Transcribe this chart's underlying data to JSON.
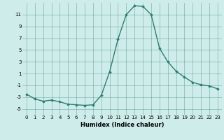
{
  "x": [
    0,
    1,
    2,
    3,
    4,
    5,
    6,
    7,
    8,
    9,
    10,
    11,
    12,
    13,
    14,
    15,
    16,
    17,
    18,
    19,
    20,
    21,
    22,
    23
  ],
  "y": [
    -2.5,
    -3.3,
    -3.7,
    -3.5,
    -3.8,
    -4.2,
    -4.3,
    -4.4,
    -4.3,
    -2.7,
    1.3,
    6.8,
    11.0,
    12.5,
    12.4,
    11.0,
    5.3,
    3.0,
    1.4,
    0.4,
    -0.5,
    -0.9,
    -1.1,
    -1.6
  ],
  "line_color": "#2e7d6e",
  "marker": "D",
  "markersize": 1.8,
  "linewidth": 1.0,
  "xlabel": "Humidex (Indice chaleur)",
  "xlim": [
    -0.5,
    23.5
  ],
  "ylim": [
    -6,
    13
  ],
  "yticks": [
    -5,
    -3,
    -1,
    1,
    3,
    5,
    7,
    9,
    11
  ],
  "xticks": [
    0,
    1,
    2,
    3,
    4,
    5,
    6,
    7,
    8,
    9,
    10,
    11,
    12,
    13,
    14,
    15,
    16,
    17,
    18,
    19,
    20,
    21,
    22,
    23
  ],
  "grid_color": "#2e7d6e",
  "bg_color": "#ceecea",
  "tick_fontsize": 5.0,
  "xlabel_fontsize": 6.0
}
